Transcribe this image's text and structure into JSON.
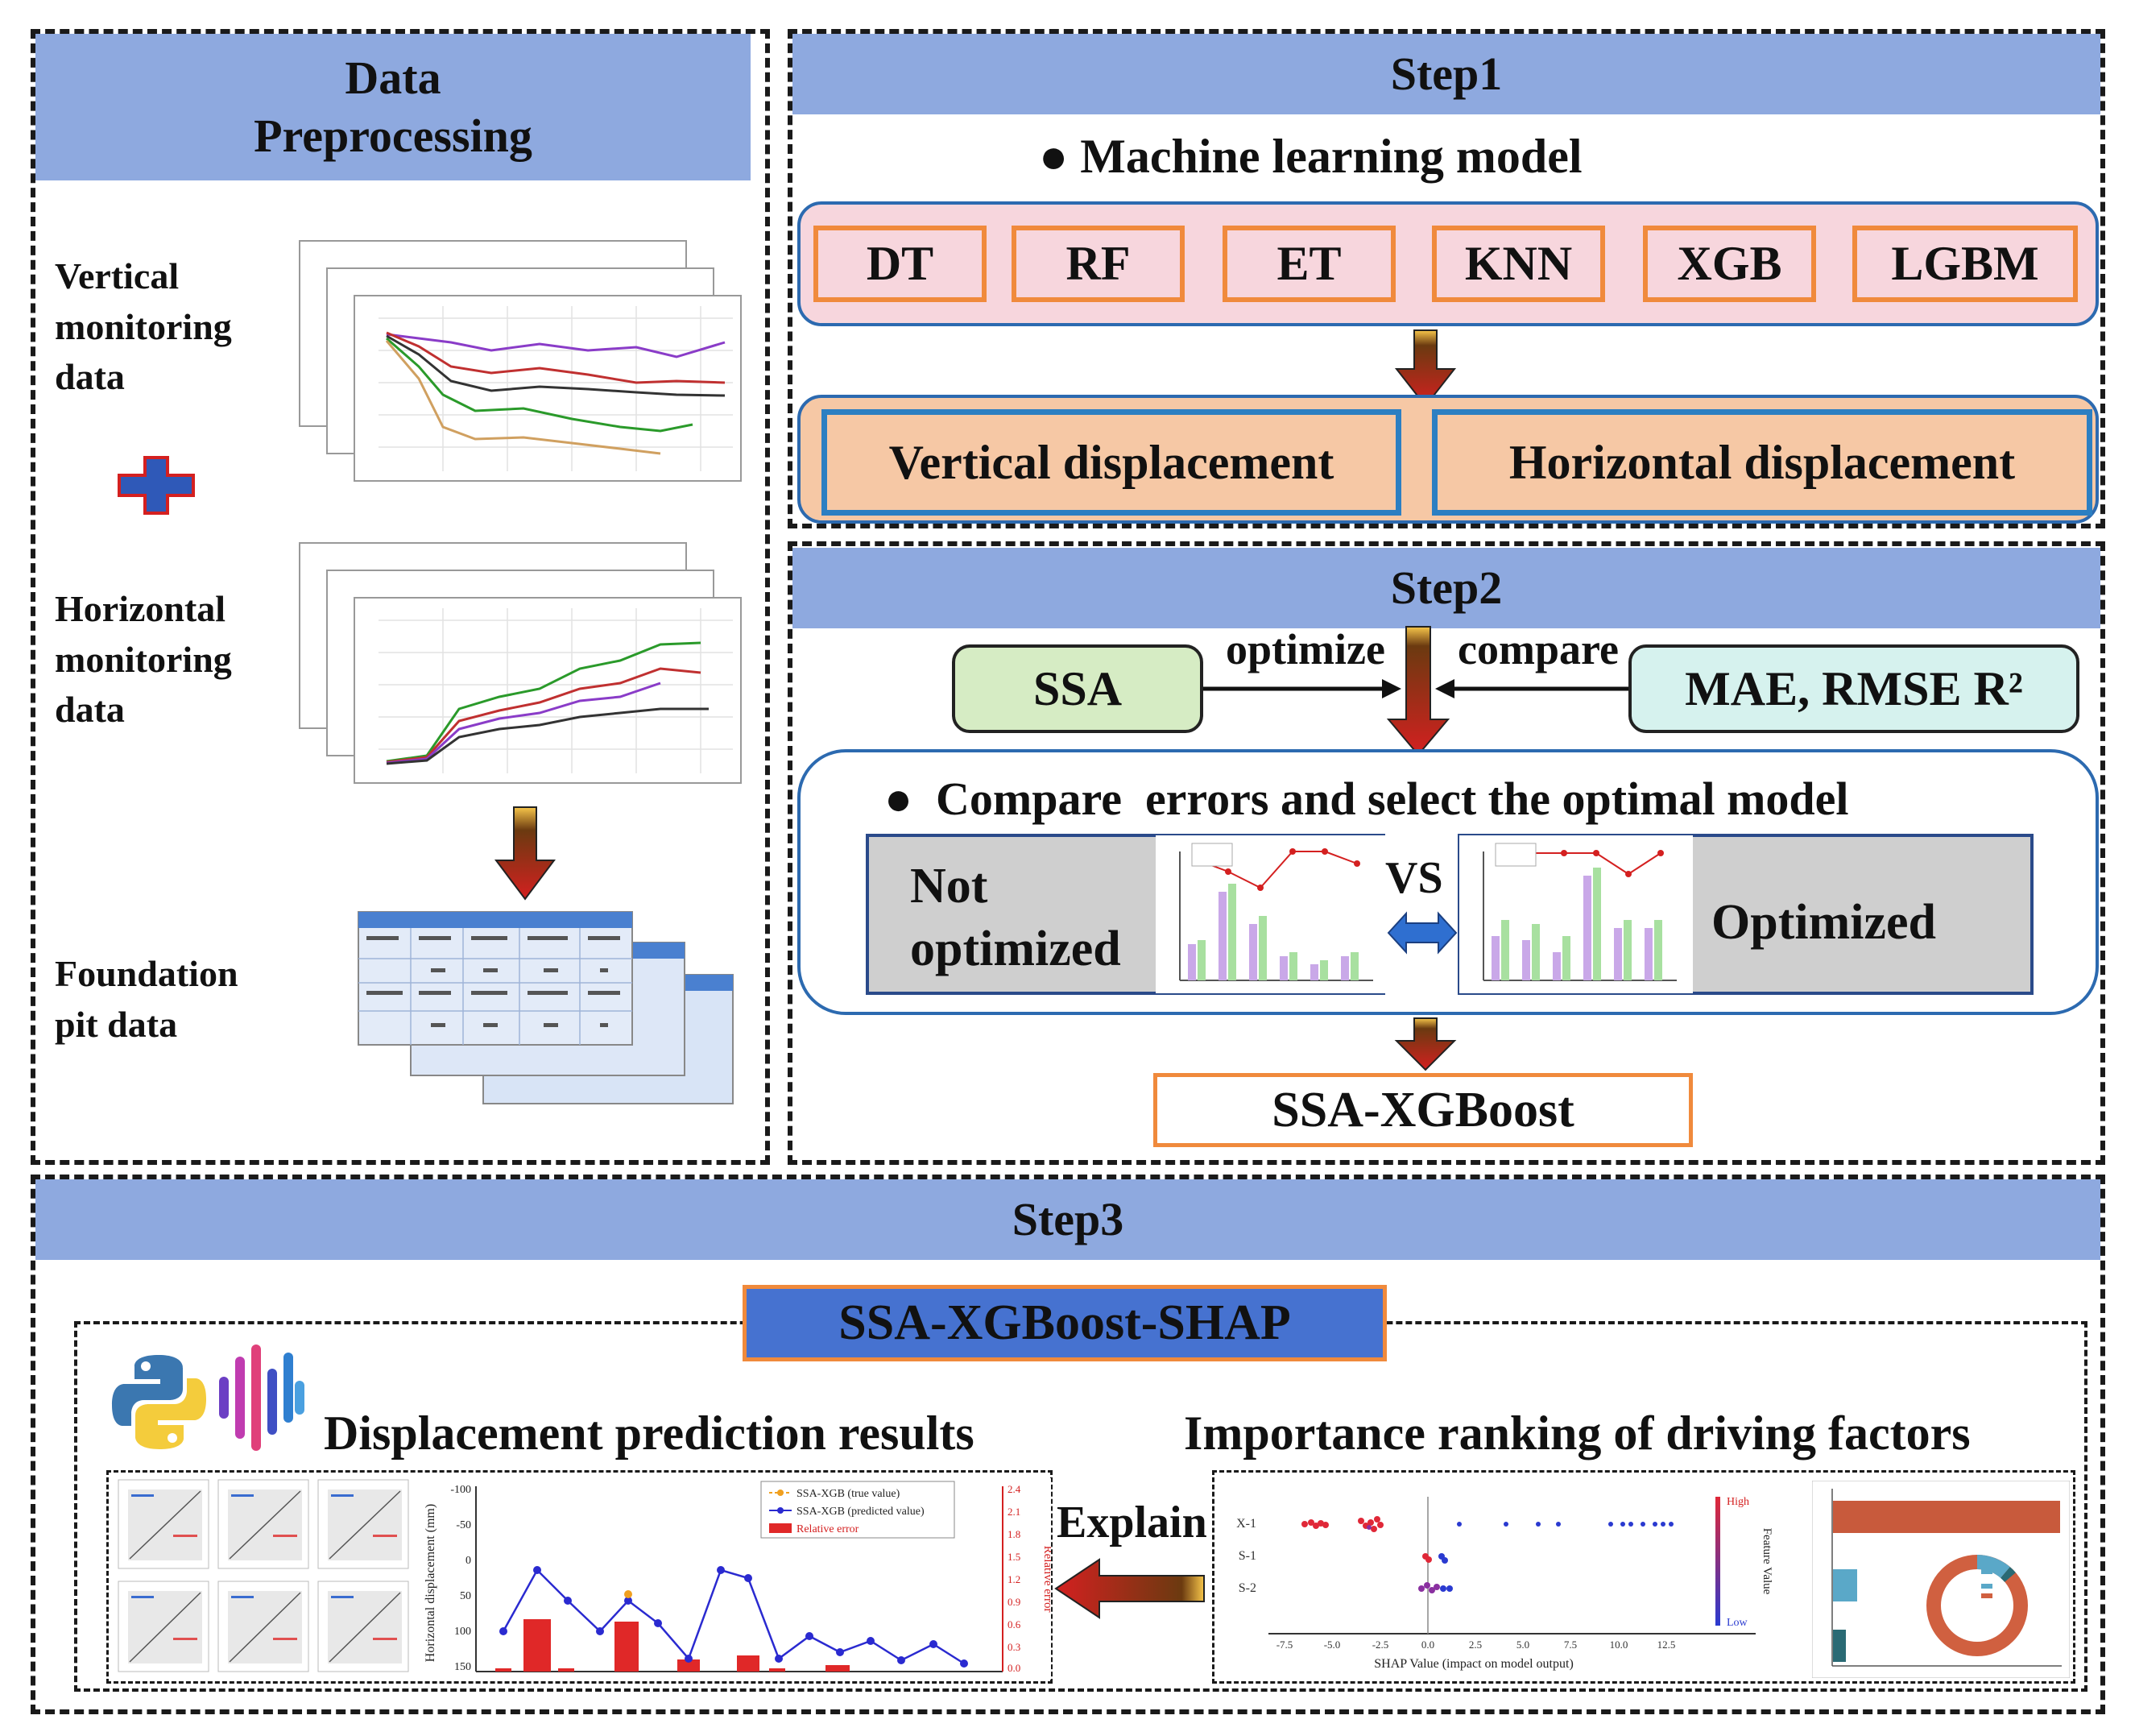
{
  "preprocessing": {
    "title": "Data\nPreprocessing",
    "vertical_label": "Vertical\nmonitoring\ndata",
    "horizontal_label": "Horizontal\nmonitoring\ndata",
    "foundation_label": "Foundation\npit data"
  },
  "step1": {
    "title": "Step1",
    "bullet": "Machine learning model",
    "models": [
      "DT",
      "RF",
      "ET",
      "KNN",
      "XGB",
      "LGBM"
    ],
    "outputs": [
      "Vertical displacement",
      "Horizontal displacement"
    ]
  },
  "step2": {
    "title": "Step2",
    "ssa": "SSA",
    "optimize": "optimize",
    "compare": "compare",
    "metrics": "MAE, RMSE R²",
    "bullet": "Compare  errors and select the optimal model",
    "not_optimized": "Not\noptimized",
    "vs": "VS",
    "optimized": "Optimized",
    "result": "SSA-XGBoost"
  },
  "step3": {
    "title": "Step3",
    "framework": "SSA-XGBoost-SHAP",
    "left_heading": "Displacement prediction results",
    "right_heading": "Importance ranking of driving factors",
    "explain": "Explain",
    "pred_chart": {
      "ylabel": "Horizontal displacement (mm)",
      "ylabel2": "Relative error",
      "yticks": [
        "-100",
        "-50",
        "0",
        "50",
        "100",
        "150"
      ],
      "y2ticks": [
        "2.4",
        "2.1",
        "1.8",
        "1.5",
        "1.2",
        "0.9",
        "0.6",
        "0.3",
        "0.0"
      ],
      "legend": [
        "SSA-XGB (true value)",
        "SSA-XGB (predicted value)",
        "Relative error"
      ]
    },
    "shap_chart": {
      "features": [
        "X-1",
        "S-1",
        "S-2"
      ],
      "xlabel": "SHAP Value (impact on model output)",
      "xticks": [
        "-7.5",
        "-5.0",
        "-2.5",
        "0.0",
        "2.5",
        "5.0",
        "7.5",
        "10.0",
        "12.5"
      ],
      "colorbar_label": "Feature Value",
      "high": "High",
      "low": "Low"
    }
  },
  "colors": {
    "header_bar": "#8ea9df",
    "model_fill": "#f7d6dd",
    "model_border": "#f08a3c",
    "display_fill": "#f6c8a5",
    "display_border": "#2c7fc2",
    "ssa_fill": "#d6ecc4",
    "metrics_fill": "#d6f2ee",
    "arrow_red": "#d42020",
    "framework_fill": "#4672d0"
  }
}
